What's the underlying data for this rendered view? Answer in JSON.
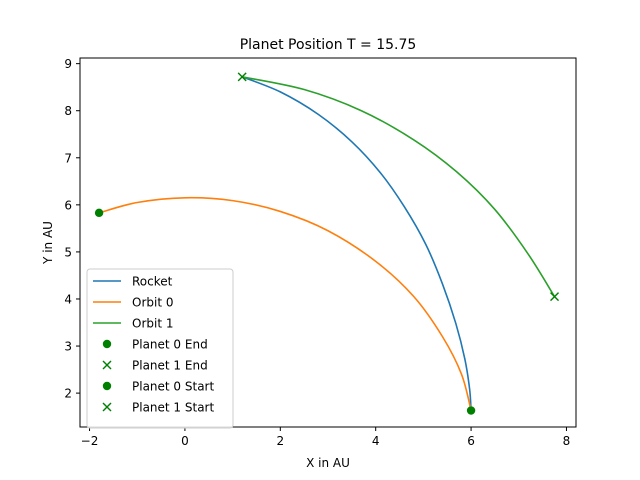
{
  "chart_data": {
    "type": "line",
    "title": "Planet Position T = 15.75",
    "xlabel": "X in AU",
    "ylabel": "Y in AU",
    "xlim": [
      -2.2,
      8.2
    ],
    "ylim": [
      1.28,
      9.12
    ],
    "xticks": [
      -2,
      0,
      2,
      4,
      6,
      8
    ],
    "yticks": [
      2,
      3,
      4,
      5,
      6,
      7,
      8,
      9
    ],
    "grid": false,
    "legend_position": "lower-left",
    "series": [
      {
        "name": "Rocket",
        "kind": "line",
        "color": "#1f77b4",
        "x": [
          1.2,
          2.0,
          2.8,
          3.5,
          4.1,
          4.6,
          5.05,
          5.4,
          5.68,
          5.87,
          5.97,
          6.0
        ],
        "y": [
          8.72,
          8.4,
          7.92,
          7.34,
          6.68,
          5.96,
          5.16,
          4.32,
          3.48,
          2.72,
          2.08,
          1.63
        ]
      },
      {
        "name": "Orbit 0",
        "kind": "line",
        "color": "#ff7f0e",
        "x": [
          -1.8,
          -1.0,
          0.0,
          1.0,
          2.0,
          3.0,
          4.0,
          4.8,
          5.4,
          5.8,
          6.0
        ],
        "y": [
          5.83,
          6.05,
          6.15,
          6.09,
          5.86,
          5.45,
          4.8,
          4.05,
          3.2,
          2.4,
          1.63
        ]
      },
      {
        "name": "Orbit 1",
        "kind": "line",
        "color": "#2ca02c",
        "x": [
          1.2,
          2.5,
          3.7,
          4.8,
          5.7,
          6.5,
          7.2,
          7.75
        ],
        "y": [
          8.72,
          8.45,
          8.0,
          7.38,
          6.7,
          5.9,
          4.95,
          4.05
        ]
      },
      {
        "name": "Planet 0 End",
        "kind": "marker",
        "marker": "circle",
        "color": "#008000",
        "x": [
          6.0
        ],
        "y": [
          1.63
        ]
      },
      {
        "name": "Planet 1 End",
        "kind": "marker",
        "marker": "x",
        "color": "#008000",
        "x": [
          7.75
        ],
        "y": [
          4.05
        ]
      },
      {
        "name": "Planet 0 Start",
        "kind": "marker",
        "marker": "circle",
        "color": "#008000",
        "x": [
          -1.8
        ],
        "y": [
          5.83
        ]
      },
      {
        "name": "Planet 1 Start",
        "kind": "marker",
        "marker": "x",
        "color": "#008000",
        "x": [
          1.2
        ],
        "y": [
          8.72
        ]
      }
    ]
  }
}
